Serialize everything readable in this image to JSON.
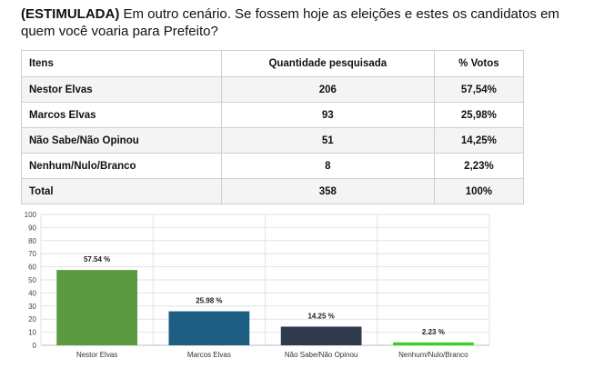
{
  "title": {
    "prefix": "(ESTIMULADA)",
    "text": " Em outro cenário. Se fossem hoje as eleições e estes os candidatos em quem você voaria para Prefeito?"
  },
  "table": {
    "headers": [
      "Itens",
      "Quantidade pesquisada",
      "% Votos"
    ],
    "rows": [
      [
        "Nestor Elvas",
        "206",
        "57,54%"
      ],
      [
        "Marcos Elvas",
        "93",
        "25,98%"
      ],
      [
        "Não Sabe/Não Opinou",
        "51",
        "14,25%"
      ],
      [
        "Nenhum/Nulo/Branco",
        "8",
        "2,23%"
      ],
      [
        "Total",
        "358",
        "100%"
      ]
    ]
  },
  "chart_data": {
    "type": "bar",
    "categories": [
      "Nestor Elvas",
      "Marcos Elvas",
      "Não Sabe/Não Opinou",
      "Nenhum/Nulo/Branco"
    ],
    "values": [
      57.54,
      25.98,
      14.25,
      2.23
    ],
    "data_labels": [
      "57.54 %",
      "25.98 %",
      "14.25 %",
      "2.23 %"
    ],
    "colors": [
      "#5b9a41",
      "#1d5f82",
      "#2f3a4f",
      "#35d31d"
    ],
    "ylim": [
      0,
      100
    ],
    "yticks": [
      0,
      10,
      20,
      30,
      40,
      50,
      60,
      70,
      80,
      90,
      100
    ],
    "grid": true
  }
}
